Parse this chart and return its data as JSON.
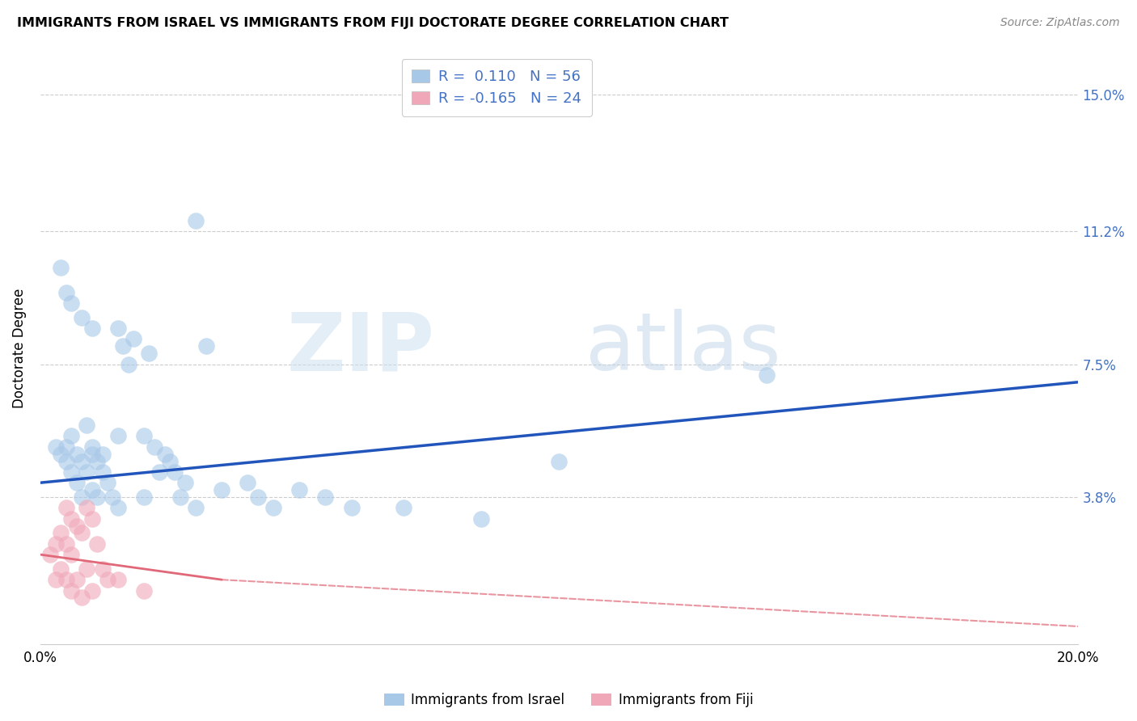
{
  "title": "IMMIGRANTS FROM ISRAEL VS IMMIGRANTS FROM FIJI DOCTORATE DEGREE CORRELATION CHART",
  "source": "Source: ZipAtlas.com",
  "ylabel": "Doctorate Degree",
  "xlim": [
    0.0,
    20.0
  ],
  "ylim": [
    -0.3,
    16.2
  ],
  "ytick_values": [
    3.8,
    7.5,
    11.2,
    15.0
  ],
  "ytick_labels": [
    "3.8%",
    "7.5%",
    "11.2%",
    "15.0%"
  ],
  "xtick_values": [
    0.0,
    20.0
  ],
  "xtick_labels": [
    "0.0%",
    "20.0%"
  ],
  "israel_color": "#a8c8e8",
  "fiji_color": "#f0a8b8",
  "israel_line_color": "#2255bb",
  "fiji_line_color": "#e06878",
  "israel_scatter_x": [
    0.3,
    0.4,
    0.5,
    0.5,
    0.6,
    0.6,
    0.7,
    0.7,
    0.8,
    0.8,
    0.9,
    0.9,
    1.0,
    1.0,
    1.0,
    1.1,
    1.1,
    1.2,
    1.2,
    1.3,
    1.4,
    1.5,
    1.5,
    1.6,
    1.7,
    1.8,
    2.0,
    2.1,
    2.2,
    2.3,
    2.4,
    2.5,
    2.6,
    2.7,
    2.8,
    3.0,
    3.2,
    3.5,
    4.0,
    4.2,
    4.5,
    5.0,
    5.5,
    6.0,
    7.0,
    8.5,
    10.0,
    14.0,
    0.4,
    0.5,
    0.6,
    0.8,
    1.0,
    1.5,
    2.0,
    3.0
  ],
  "israel_scatter_y": [
    5.2,
    5.0,
    5.2,
    4.8,
    5.5,
    4.5,
    5.0,
    4.2,
    4.8,
    3.8,
    5.8,
    4.5,
    5.2,
    5.0,
    4.0,
    4.8,
    3.8,
    5.0,
    4.5,
    4.2,
    3.8,
    5.5,
    3.5,
    8.0,
    7.5,
    8.2,
    5.5,
    7.8,
    5.2,
    4.5,
    5.0,
    4.8,
    4.5,
    3.8,
    4.2,
    11.5,
    8.0,
    4.0,
    4.2,
    3.8,
    3.5,
    4.0,
    3.8,
    3.5,
    3.5,
    3.2,
    4.8,
    7.2,
    10.2,
    9.5,
    9.2,
    8.8,
    8.5,
    8.5,
    3.8,
    3.5
  ],
  "fiji_scatter_x": [
    0.2,
    0.3,
    0.3,
    0.4,
    0.4,
    0.5,
    0.5,
    0.5,
    0.6,
    0.6,
    0.6,
    0.7,
    0.7,
    0.8,
    0.8,
    0.9,
    0.9,
    1.0,
    1.0,
    1.1,
    1.2,
    1.3,
    1.5,
    2.0
  ],
  "fiji_scatter_y": [
    2.2,
    2.5,
    1.5,
    2.8,
    1.8,
    3.5,
    2.5,
    1.5,
    3.2,
    2.2,
    1.2,
    3.0,
    1.5,
    2.8,
    1.0,
    3.5,
    1.8,
    3.2,
    1.2,
    2.5,
    1.8,
    1.5,
    1.5,
    1.2
  ],
  "israel_trend": [
    0.0,
    4.2,
    20.0,
    7.0
  ],
  "fiji_trend_solid": [
    0.0,
    2.2,
    3.5,
    1.5
  ],
  "fiji_trend_dashed": [
    3.5,
    1.5,
    20.0,
    0.2
  ]
}
